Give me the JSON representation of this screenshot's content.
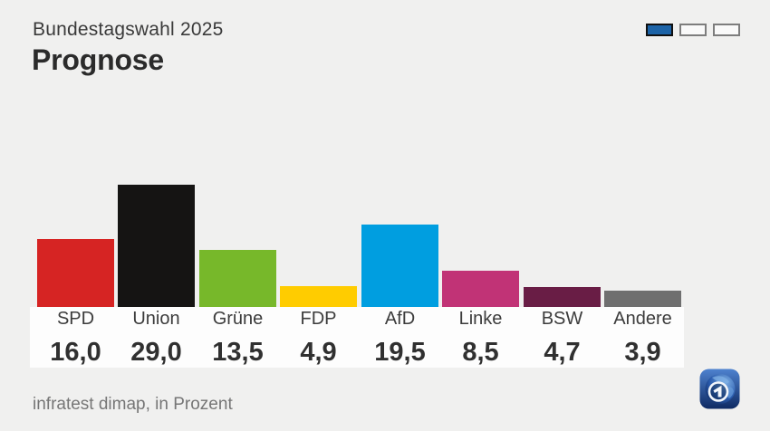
{
  "header": {
    "kicker": "Bundestagswahl 2025",
    "title": "Prognose"
  },
  "pagination": {
    "pages": 3,
    "active_index": 0,
    "active_color": "#1c63a7",
    "inactive_color": "#f9f9f9"
  },
  "chart_data": {
    "type": "bar",
    "title": "Prognose",
    "subtitle": "Bundestagswahl 2025",
    "categories": [
      "SPD",
      "Union",
      "Grüne",
      "FDP",
      "AfD",
      "Linke",
      "BSW",
      "Andere"
    ],
    "values": [
      16.0,
      29.0,
      13.5,
      4.9,
      19.5,
      8.5,
      4.7,
      3.9
    ],
    "value_labels": [
      "16,0",
      "29,0",
      "13,5",
      "4,9",
      "19,5",
      "8,5",
      "4,7",
      "3,9"
    ],
    "colors": [
      "#d62423",
      "#151413",
      "#77b82a",
      "#ffcc00",
      "#009ee0",
      "#c13376",
      "#691d45",
      "#6f6f6f"
    ],
    "unit": "Prozent",
    "xlabel": "",
    "ylabel": "",
    "ylim": [
      0,
      30
    ],
    "grid": false,
    "legend_position": "none"
  },
  "footer": {
    "source": "infratest dimap, in Prozent"
  }
}
